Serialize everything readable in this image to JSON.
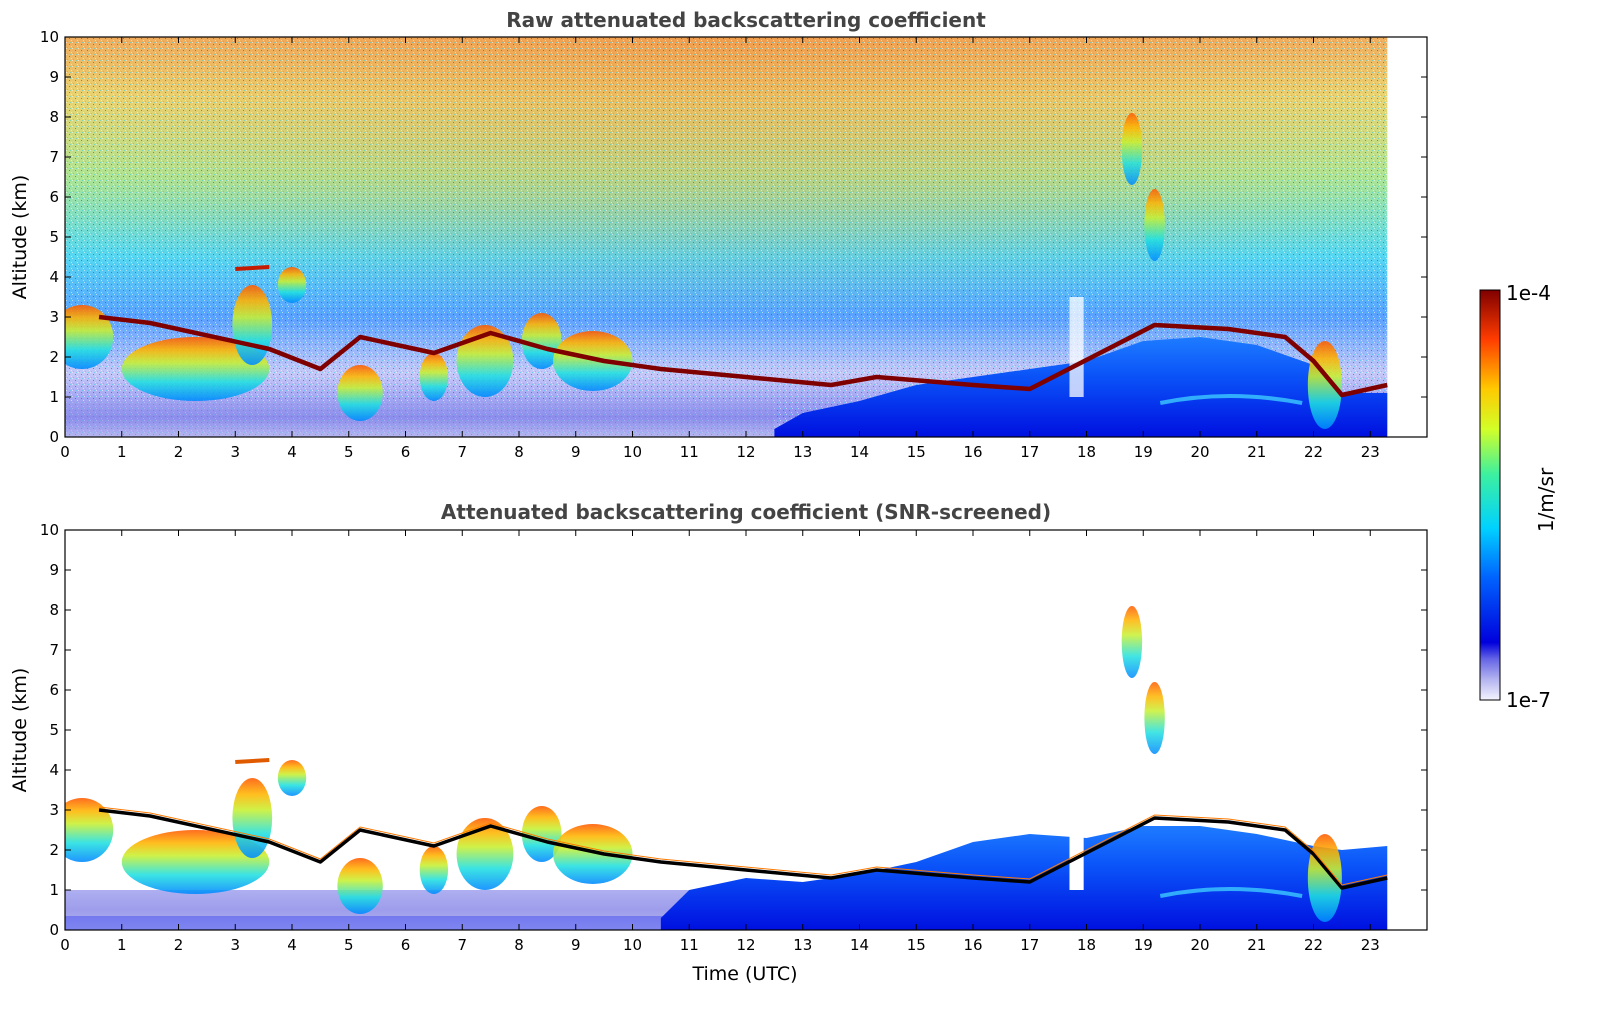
{
  "colors": {
    "background": "#ffffff",
    "title": "#444444",
    "cloud_top_min": "#7f0000",
    "cloud_top_screened": "#000000",
    "colormap_low": "#ffffff",
    "colormap_high": "#7f0000"
  },
  "colorbar": {
    "label": "1/m/sr",
    "max_label": "1e-4",
    "min_label": "1e-7",
    "scale": "log",
    "colormap": "jet with light-lavender low end"
  },
  "chart_data": [
    {
      "type": "heatmap",
      "title": "Raw attenuated backscattering coefficient",
      "xlabel": "",
      "ylabel": "Altitude (km)",
      "xlim": [
        0,
        24
      ],
      "ylim": [
        0,
        10
      ],
      "data_end_hour": 23.3,
      "xticks": [
        "0",
        "1",
        "2",
        "3",
        "4",
        "5",
        "6",
        "7",
        "8",
        "9",
        "10",
        "11",
        "12",
        "13",
        "14",
        "15",
        "16",
        "17",
        "18",
        "19",
        "20",
        "21",
        "22",
        "23"
      ],
      "yticks": [
        "0",
        "1",
        "2",
        "3",
        "4",
        "5",
        "6",
        "7",
        "8",
        "9",
        "10"
      ],
      "grid": false,
      "cloud_layer_km": [
        [
          0.6,
          3.0
        ],
        [
          1.5,
          2.85
        ],
        [
          3.6,
          2.2
        ],
        [
          4.5,
          1.7
        ],
        [
          5.2,
          2.5
        ],
        [
          6.5,
          2.1
        ],
        [
          7.5,
          2.6
        ],
        [
          8.5,
          2.2
        ],
        [
          9.5,
          1.9
        ],
        [
          10.5,
          1.7
        ],
        [
          12.0,
          1.5
        ],
        [
          13.5,
          1.3
        ],
        [
          14.3,
          1.5
        ],
        [
          16.0,
          1.3
        ],
        [
          17.0,
          1.2
        ],
        [
          19.2,
          2.8
        ],
        [
          20.5,
          2.7
        ],
        [
          21.5,
          2.5
        ],
        [
          22.0,
          1.9
        ],
        [
          22.5,
          1.05
        ],
        [
          23.3,
          1.3
        ]
      ],
      "elevated_layer_km": [
        [
          3.0,
          4.2
        ],
        [
          3.6,
          4.25
        ],
        [
          18.8,
          7.2
        ],
        [
          19.2,
          5.3
        ]
      ]
    },
    {
      "type": "heatmap",
      "title": "Attenuated backscattering coefficient (SNR-screened)",
      "xlabel": "Time (UTC)",
      "ylabel": "Altitude (km)",
      "xlim": [
        0,
        24
      ],
      "ylim": [
        0,
        10
      ],
      "data_end_hour": 23.3,
      "xticks": [
        "0",
        "1",
        "2",
        "3",
        "4",
        "5",
        "6",
        "7",
        "8",
        "9",
        "10",
        "11",
        "12",
        "13",
        "14",
        "15",
        "16",
        "17",
        "18",
        "19",
        "20",
        "21",
        "22",
        "23"
      ],
      "yticks": [
        "0",
        "1",
        "2",
        "3",
        "4",
        "5",
        "6",
        "7",
        "8",
        "9",
        "10"
      ],
      "grid": false,
      "cloud_layer_km": [
        [
          0.6,
          3.0
        ],
        [
          1.5,
          2.85
        ],
        [
          3.6,
          2.2
        ],
        [
          4.5,
          1.7
        ],
        [
          5.2,
          2.5
        ],
        [
          6.5,
          2.1
        ],
        [
          7.5,
          2.6
        ],
        [
          8.5,
          2.2
        ],
        [
          9.5,
          1.9
        ],
        [
          10.5,
          1.7
        ],
        [
          12.0,
          1.5
        ],
        [
          13.5,
          1.3
        ],
        [
          14.3,
          1.5
        ],
        [
          16.0,
          1.3
        ],
        [
          17.0,
          1.2
        ],
        [
          19.2,
          2.8
        ],
        [
          20.5,
          2.7
        ],
        [
          21.5,
          2.5
        ],
        [
          22.0,
          1.9
        ],
        [
          22.5,
          1.05
        ],
        [
          23.3,
          1.3
        ]
      ],
      "elevated_layer_km": [
        [
          3.0,
          4.2
        ],
        [
          3.6,
          4.25
        ],
        [
          18.8,
          7.2
        ],
        [
          19.2,
          5.3
        ]
      ]
    }
  ]
}
